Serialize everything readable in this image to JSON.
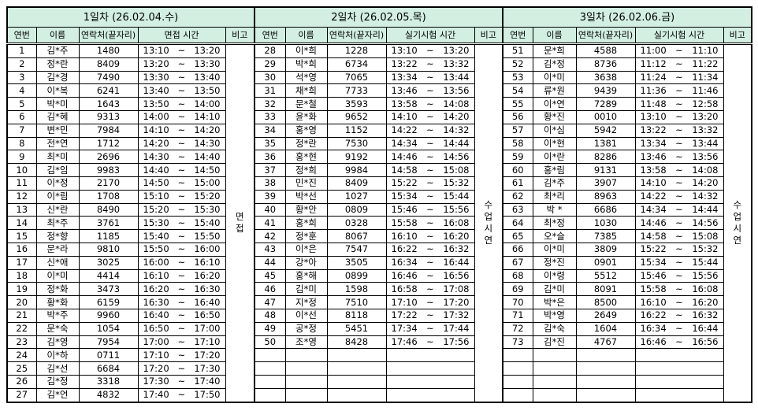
{
  "columns": {
    "no": "연번",
    "name": "이름",
    "phone": "연락처(끝자리)",
    "remark": "비고"
  },
  "header_bg": "#d2efe2",
  "days": [
    {
      "title": "1일차 (26.02.04.수)",
      "time_header": "면접 시간",
      "remark": "면접",
      "empty_rows": 0,
      "rows": [
        [
          "1",
          "김*주",
          "1480",
          "13:10",
          "13:20"
        ],
        [
          "2",
          "정*란",
          "8409",
          "13:20",
          "13:30"
        ],
        [
          "3",
          "김*경",
          "7490",
          "13:30",
          "13:40"
        ],
        [
          "4",
          "이*복",
          "6241",
          "13:40",
          "13:50"
        ],
        [
          "5",
          "박*미",
          "1643",
          "13:50",
          "14:00"
        ],
        [
          "6",
          "김*혜",
          "9313",
          "14:00",
          "14:10"
        ],
        [
          "7",
          "변*민",
          "7984",
          "14:10",
          "14:20"
        ],
        [
          "8",
          "전*연",
          "1712",
          "14:20",
          "14:30"
        ],
        [
          "9",
          "최*미",
          "2696",
          "14:30",
          "14:40"
        ],
        [
          "10",
          "김*임",
          "9983",
          "14:40",
          "14:50"
        ],
        [
          "11",
          "이*정",
          "2170",
          "14:50",
          "15:00"
        ],
        [
          "12",
          "이*림",
          "1708",
          "15:10",
          "15:20"
        ],
        [
          "13",
          "신*란",
          "8490",
          "15:20",
          "15:30"
        ],
        [
          "14",
          "최*주",
          "3761",
          "15:30",
          "15:40"
        ],
        [
          "15",
          "정*향",
          "1185",
          "15:40",
          "15:50"
        ],
        [
          "16",
          "문*라",
          "9810",
          "15:50",
          "16:00"
        ],
        [
          "17",
          "신*애",
          "3025",
          "16:00",
          "16:10"
        ],
        [
          "18",
          "이*미",
          "4414",
          "16:10",
          "16:20"
        ],
        [
          "19",
          "정*화",
          "3473",
          "16:20",
          "16:30"
        ],
        [
          "20",
          "황*화",
          "6159",
          "16:30",
          "16:40"
        ],
        [
          "21",
          "박*주",
          "9960",
          "16:40",
          "16:50"
        ],
        [
          "22",
          "문*숙",
          "1054",
          "16:50",
          "17:00"
        ],
        [
          "23",
          "김*영",
          "7954",
          "17:00",
          "17:10"
        ],
        [
          "24",
          "이*하",
          "0711",
          "17:10",
          "17:20"
        ],
        [
          "25",
          "김*선",
          "6684",
          "17:20",
          "17:30"
        ],
        [
          "26",
          "김*정",
          "3318",
          "17:30",
          "17:40"
        ],
        [
          "27",
          "김*언",
          "4832",
          "17:40",
          "17:50"
        ]
      ]
    },
    {
      "title": "2일차 (26.02.05.목)",
      "time_header": "실기시험 시간",
      "remark": "수업시연",
      "empty_rows": 4,
      "rows": [
        [
          "28",
          "이*희",
          "1228",
          "13:10",
          "13:20"
        ],
        [
          "29",
          "박*희",
          "6734",
          "13:22",
          "13:32"
        ],
        [
          "30",
          "석*영",
          "7065",
          "13:34",
          "13:44"
        ],
        [
          "31",
          "채*희",
          "7733",
          "13:46",
          "13:56"
        ],
        [
          "32",
          "문*철",
          "3593",
          "13:58",
          "14:08"
        ],
        [
          "33",
          "윤*화",
          "9652",
          "14:10",
          "14:20"
        ],
        [
          "34",
          "홍*영",
          "1152",
          "14:22",
          "14:32"
        ],
        [
          "35",
          "정*란",
          "7530",
          "14:34",
          "14:44"
        ],
        [
          "36",
          "홍*현",
          "9192",
          "14:46",
          "14:56"
        ],
        [
          "37",
          "정*희",
          "9984",
          "14:58",
          "15:08"
        ],
        [
          "38",
          "민*진",
          "8409",
          "15:22",
          "15:32"
        ],
        [
          "39",
          "박*선",
          "1027",
          "15:34",
          "15:44"
        ],
        [
          "40",
          "황*안",
          "0809",
          "15:46",
          "15:56"
        ],
        [
          "41",
          "홍*희",
          "0328",
          "15:58",
          "16:08"
        ],
        [
          "42",
          "정*훈",
          "8067",
          "16:10",
          "16:20"
        ],
        [
          "43",
          "이*은",
          "7547",
          "16:22",
          "16:32"
        ],
        [
          "44",
          "강*아",
          "3505",
          "16:34",
          "16:44"
        ],
        [
          "45",
          "홍*해",
          "0899",
          "16:46",
          "16:56"
        ],
        [
          "46",
          "김*미",
          "1598",
          "16:58",
          "17:08"
        ],
        [
          "47",
          "지*정",
          "7510",
          "17:10",
          "17:20"
        ],
        [
          "48",
          "이*선",
          "8118",
          "17:22",
          "17:32"
        ],
        [
          "49",
          "공*정",
          "5451",
          "17:34",
          "17:44"
        ],
        [
          "50",
          "조*영",
          "8428",
          "17:46",
          "17:56"
        ]
      ]
    },
    {
      "title": "3일차 (26.02.06.금)",
      "time_header": "실기시험 시간",
      "remark": "수업시연",
      "empty_rows": 4,
      "rows": [
        [
          "51",
          "문*희",
          "4588",
          "11:00",
          "11:10"
        ],
        [
          "52",
          "김*정",
          "8736",
          "11:12",
          "11:22"
        ],
        [
          "53",
          "이*미",
          "3638",
          "11:24",
          "11:34"
        ],
        [
          "54",
          "류*원",
          "9439",
          "11:36",
          "11:46"
        ],
        [
          "55",
          "이*연",
          "7289",
          "11:48",
          "12:58"
        ],
        [
          "56",
          "황*진",
          "0010",
          "13:10",
          "13:20"
        ],
        [
          "57",
          "이*심",
          "5942",
          "13:22",
          "13:32"
        ],
        [
          "58",
          "이*현",
          "1381",
          "13:34",
          "13:44"
        ],
        [
          "59",
          "이*란",
          "8286",
          "13:46",
          "13:56"
        ],
        [
          "60",
          "홍*림",
          "9131",
          "13:58",
          "14:08"
        ],
        [
          "61",
          "김*주",
          "3907",
          "14:10",
          "14:20"
        ],
        [
          "62",
          "최*리",
          "8963",
          "14:22",
          "14:32"
        ],
        [
          "63",
          "박 *",
          "6686",
          "14:34",
          "14:44"
        ],
        [
          "64",
          "최*정",
          "1030",
          "14:46",
          "14:56"
        ],
        [
          "65",
          "오*슬",
          "7385",
          "14:58",
          "15:08"
        ],
        [
          "66",
          "이*미",
          "3809",
          "15:22",
          "15:32"
        ],
        [
          "67",
          "정*진",
          "0901",
          "15:34",
          "15:44"
        ],
        [
          "68",
          "이*령",
          "5512",
          "15:46",
          "15:56"
        ],
        [
          "69",
          "김*미",
          "8091",
          "15:58",
          "16:08"
        ],
        [
          "70",
          "박*은",
          "8500",
          "16:10",
          "16:20"
        ],
        [
          "71",
          "박*영",
          "2649",
          "16:22",
          "16:32"
        ],
        [
          "72",
          "김*숙",
          "1604",
          "16:34",
          "16:44"
        ],
        [
          "73",
          "김*진",
          "4767",
          "16:46",
          "16:56"
        ]
      ]
    }
  ]
}
